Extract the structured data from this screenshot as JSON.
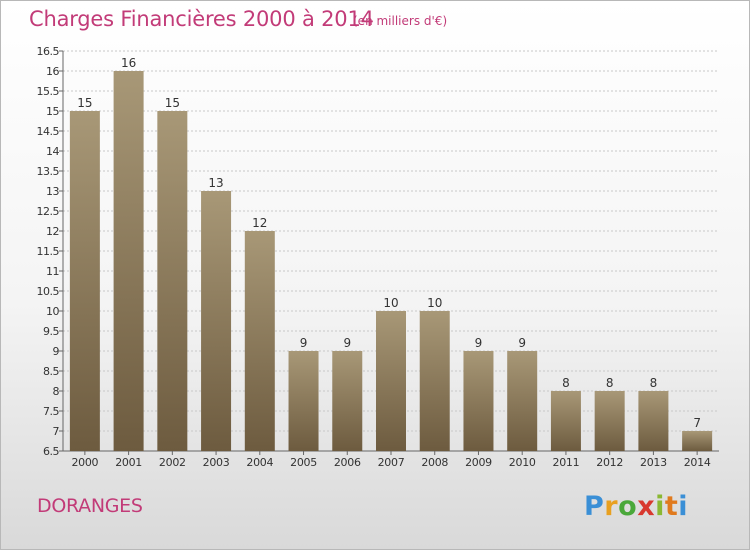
{
  "header": {
    "title": "Charges Financières 2000 à 2014",
    "unit": "(en milliers d'€)"
  },
  "footer": {
    "commune": "DORANGES",
    "logo_letters": [
      "P",
      "r",
      "o",
      "x",
      "i",
      "t",
      "i"
    ]
  },
  "colors": {
    "title": "#c23b78",
    "bar_top": "#a89877",
    "bar_bottom": "#6d5b3f"
  },
  "chart_data": {
    "type": "bar",
    "categories": [
      "2000",
      "2001",
      "2002",
      "2003",
      "2004",
      "2005",
      "2006",
      "2007",
      "2008",
      "2009",
      "2010",
      "2011",
      "2012",
      "2013",
      "2014"
    ],
    "values": [
      15,
      16,
      15,
      13,
      12,
      9,
      9,
      10,
      10,
      9,
      9,
      8,
      8,
      8,
      7
    ],
    "labels": [
      "15",
      "16",
      "15",
      "13",
      "12",
      "9",
      "9",
      "10",
      "10",
      "9",
      "9",
      "8",
      "8",
      "8",
      "7"
    ],
    "ylim": [
      6.5,
      16.5
    ],
    "yticks": [
      6.5,
      7,
      7.5,
      8,
      8.5,
      9,
      9.5,
      10,
      10.5,
      11,
      11.5,
      12,
      12.5,
      13,
      13.5,
      14,
      14.5,
      15,
      15.5,
      16,
      16.5
    ],
    "ytick_labels": [
      "6.5",
      "7",
      "7.5",
      "8",
      "8.5",
      "9",
      "9.5",
      "10",
      "10.5",
      "11",
      "11.5",
      "12",
      "12.5",
      "13",
      "13.5",
      "14",
      "14.5",
      "15",
      "15.5",
      "16",
      "16.5"
    ],
    "grid": true
  }
}
